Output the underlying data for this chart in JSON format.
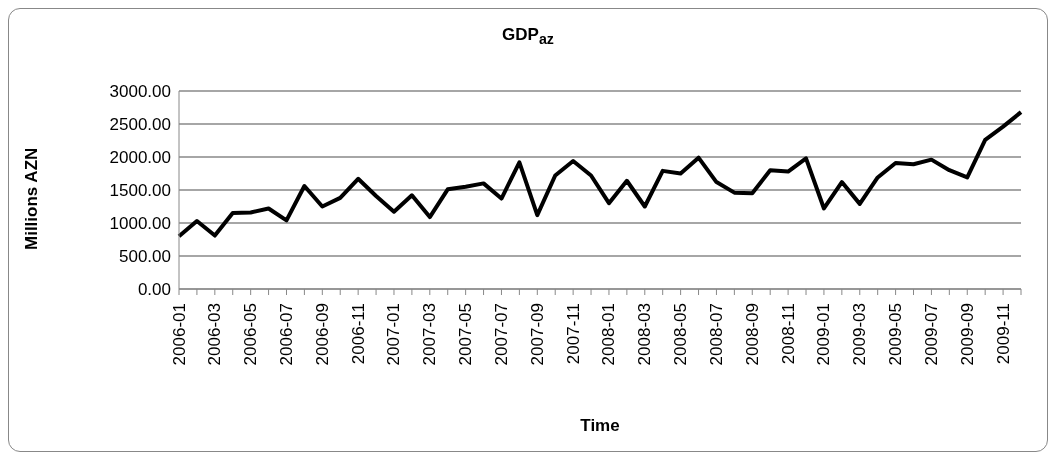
{
  "chart_data": {
    "type": "line",
    "title": "GDP$_{az}$",
    "xlabel": "Time",
    "ylabel": "Millions AZN",
    "categories": [
      "2006-01",
      null,
      "2006-03",
      null,
      "2006-05",
      null,
      "2006-07",
      null,
      "2006-09",
      null,
      "2006-11",
      null,
      "2007-01",
      null,
      "2007-03",
      null,
      "2007-05",
      null,
      "2007-07",
      null,
      "2007-09",
      null,
      "2007-11",
      null,
      "2008-01",
      null,
      "2008-03",
      null,
      "2008-05",
      null,
      "2008-07",
      null,
      "2008-09",
      null,
      "2008-11",
      null,
      "2009-01",
      null,
      "2009-03",
      null,
      "2009-05",
      null,
      "2009-07",
      null,
      "2009-09",
      null,
      "2009-11",
      null
    ],
    "series": [
      {
        "color": "#000000",
        "values": [
          800,
          1030,
          810,
          1150,
          1160,
          1220,
          1040,
          1560,
          1250,
          1380,
          1670,
          1410,
          1170,
          1420,
          1090,
          1510,
          1550,
          1600,
          1370,
          1920,
          1120,
          1720,
          1940,
          1720,
          1300,
          1640,
          1250,
          1790,
          1750,
          1990,
          1620,
          1460,
          1450,
          1800,
          1780,
          1980,
          1220,
          1620,
          1290,
          1690,
          1910,
          1890,
          1960,
          1800,
          1690,
          2260,
          2460,
          2680
        ]
      }
    ],
    "ylim": [
      0,
      3000
    ],
    "yticks": [
      {
        "value": 0,
        "label": "0.00"
      },
      {
        "value": 500,
        "label": "500.00"
      },
      {
        "value": 1000,
        "label": "1000.00"
      },
      {
        "value": 1500,
        "label": "1500.00"
      },
      {
        "value": 2000,
        "label": "2000.00"
      },
      {
        "value": 2500,
        "label": "2500.00"
      },
      {
        "value": 3000,
        "label": "3000.00"
      }
    ],
    "grid": "y",
    "legend": false,
    "marker": "none",
    "line_style": "solid"
  }
}
